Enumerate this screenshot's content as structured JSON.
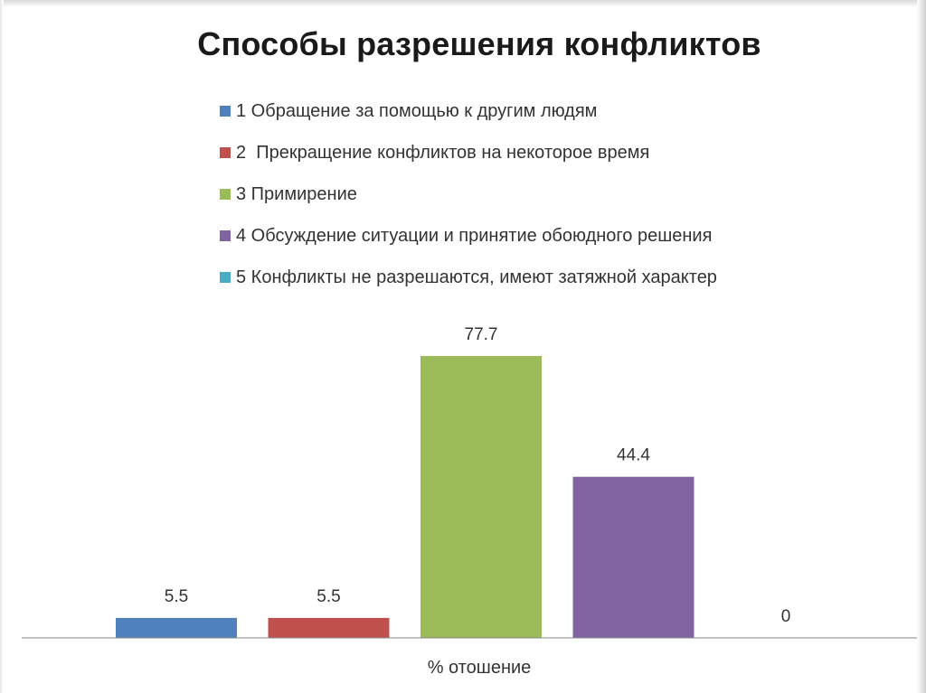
{
  "chart_data": {
    "type": "bar",
    "title": "Способы разрешения конфликтов",
    "xlabel": "% отошение",
    "ylabel": "",
    "ylim": [
      0,
      80
    ],
    "categories": [
      "% отошение"
    ],
    "legend_position": "top",
    "grid": false,
    "series": [
      {
        "name": "1 Обращение за помощью к другим людям",
        "values": [
          5.5
        ],
        "color": "#4f81bd"
      },
      {
        "name": "2  Прекращение конфликтов на некоторое время",
        "values": [
          5.5
        ],
        "color": "#c0504d"
      },
      {
        "name": "3 Примирение",
        "values": [
          77.7
        ],
        "color": "#9bbb59"
      },
      {
        "name": "4 Обсуждение ситуации и принятие обоюдного решения",
        "values": [
          44.4
        ],
        "color": "#8064a2"
      },
      {
        "name": "5 Конфликты не разрешаются, имеют затяжной характер",
        "values": [
          0
        ],
        "color": "#4bacc6"
      }
    ]
  }
}
